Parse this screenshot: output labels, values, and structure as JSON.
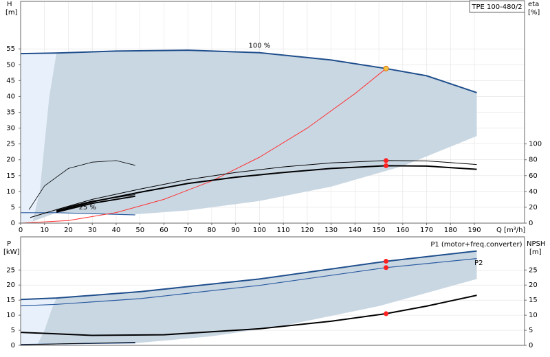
{
  "chart_data": [
    {
      "type": "line",
      "title": "TPE 100-480/2",
      "xlabel": "Q [m³/h]",
      "ylabel": "H",
      "yunit": "[m]",
      "y2label": "eta",
      "y2unit": "[%]",
      "xlim": [
        0,
        211
      ],
      "ylim": [
        0,
        70
      ],
      "y2lim": [
        0,
        280
      ],
      "grid": true,
      "xticks": [
        0,
        10,
        20,
        30,
        40,
        50,
        60,
        70,
        80,
        90,
        100,
        110,
        120,
        130,
        140,
        150,
        160,
        170,
        180,
        190
      ],
      "yticks": [
        0,
        5,
        10,
        15,
        20,
        25,
        30,
        35,
        40,
        45,
        50,
        55
      ],
      "y2ticks": [
        0,
        20,
        40,
        60,
        80,
        100
      ],
      "series": [
        {
          "style": "area",
          "color": "#e8f1fb",
          "x": [
            0,
            0,
            15,
            12,
            10,
            8,
            5
          ],
          "values": [
            0,
            53.5,
            53.7,
            40,
            25,
            10,
            0.5
          ]
        },
        {
          "style": "area",
          "color": "#c9d7e3",
          "x": [
            15,
            40,
            70,
            100,
            130,
            153,
            170,
            191,
            191,
            160,
            130,
            100,
            70,
            48,
            15,
            5,
            8,
            10,
            12
          ],
          "values": [
            53.7,
            54.3,
            54.6,
            53.8,
            51.5,
            48.8,
            46.5,
            41.2,
            27.5,
            18,
            11.5,
            7,
            4,
            2.8,
            3.3,
            0.5,
            10,
            25,
            40
          ]
        },
        {
          "style": "line",
          "color": "#1f4e8c",
          "width": 2,
          "x": [
            0,
            15,
            40,
            70,
            100,
            130,
            153,
            170,
            191
          ],
          "values": [
            53.5,
            53.7,
            54.3,
            54.6,
            53.8,
            51.5,
            48.8,
            46.5,
            41.2
          ]
        },
        {
          "style": "line",
          "color": "#2a5aa0",
          "width": 1.2,
          "x": [
            0,
            15,
            48
          ],
          "values": [
            3.3,
            3.3,
            2.6
          ]
        },
        {
          "style": "line",
          "color": "#ff3030",
          "width": 1,
          "x": [
            0,
            20,
            40,
            60,
            80,
            100,
            120,
            140,
            153
          ],
          "values": [
            0,
            0.83,
            3.34,
            7.5,
            13.3,
            20.8,
            30,
            40.9,
            48.8
          ]
        },
        {
          "style": "line",
          "color": "#000000",
          "width": 0.8,
          "axis": "y2",
          "x": [
            3.5,
            10,
            20,
            30,
            40,
            48
          ],
          "values": [
            17,
            47,
            69,
            77,
            79,
            73
          ]
        },
        {
          "style": "line",
          "color": "#000000",
          "width": 1,
          "axis": "y2",
          "x": [
            4,
            15,
            30,
            48
          ],
          "values": [
            7,
            17,
            28,
            36
          ]
        },
        {
          "style": "line",
          "color": "#000000",
          "width": 2,
          "axis": "y2",
          "x": [
            15,
            30,
            48
          ],
          "values": [
            14,
            25,
            34
          ]
        },
        {
          "style": "line",
          "color": "#000000",
          "width": 1,
          "axis": "y2",
          "x": [
            15,
            30,
            50,
            70,
            90,
            110,
            130,
            153,
            170,
            191
          ],
          "values": [
            17,
            30,
            43,
            55,
            64,
            71,
            76,
            79,
            78.5,
            74
          ]
        },
        {
          "style": "line",
          "color": "#000000",
          "width": 2,
          "axis": "y2",
          "x": [
            15,
            30,
            50,
            70,
            90,
            110,
            130,
            153,
            170,
            191
          ],
          "values": [
            15.5,
            27,
            39,
            50,
            58,
            64,
            69,
            72.5,
            72,
            68
          ]
        },
        {
          "style": "points",
          "color": "#ff2020",
          "axis": "y2",
          "x": [
            153,
            153
          ],
          "values": [
            79,
            72.5
          ]
        },
        {
          "style": "points",
          "color": "#f5c542",
          "x": [
            153
          ],
          "values": [
            48.8
          ]
        }
      ],
      "annotations": [
        {
          "text": "100 %",
          "x": 100,
          "y": 56,
          "anchor": "middle",
          "color": "#000000"
        },
        {
          "text": "25 %",
          "x": 28,
          "y": 5,
          "anchor": "middle",
          "color": "#000000"
        }
      ]
    },
    {
      "type": "line",
      "ylabel": "P",
      "yunit": "[kW]",
      "y2label": "NPSH",
      "y2unit": "[m]",
      "xlim": [
        0,
        211
      ],
      "ylim": [
        0,
        36
      ],
      "y2lim": [
        0,
        36
      ],
      "grid": true,
      "yticks": [
        0,
        5,
        10,
        15,
        20,
        25
      ],
      "y2ticks": [
        0,
        5,
        10,
        15,
        20,
        25
      ],
      "series": [
        {
          "style": "area",
          "color": "#e8f1fb",
          "x": [
            0,
            0,
            15,
            13,
            10,
            7
          ],
          "values": [
            0,
            15.2,
            15.7,
            12,
            5,
            0.3
          ]
        },
        {
          "style": "area",
          "color": "#c9d7e3",
          "x": [
            15,
            50,
            100,
            153,
            191,
            191,
            150,
            110,
            80,
            48,
            7,
            10,
            13
          ],
          "values": [
            15.7,
            17.8,
            22,
            27.9,
            31.3,
            22,
            13,
            6.5,
            3,
            0.7,
            0.3,
            5,
            12
          ]
        },
        {
          "style": "line",
          "color": "#1f4e8c",
          "width": 2,
          "x": [
            0,
            15,
            50,
            100,
            153,
            191
          ],
          "values": [
            15.2,
            15.7,
            17.8,
            22,
            27.9,
            31.3
          ]
        },
        {
          "style": "line",
          "color": "#2a5aa0",
          "width": 1.2,
          "x": [
            0,
            15,
            50,
            100,
            153,
            191
          ],
          "values": [
            13.1,
            13.6,
            15.5,
            19.9,
            25.8,
            28.8
          ]
        },
        {
          "style": "line",
          "color": "#2a5aa0",
          "width": 1.2,
          "x": [
            0,
            48
          ],
          "values": [
            0.3,
            0.8
          ]
        },
        {
          "style": "line",
          "color": "#000000",
          "width": 1,
          "axis": "y2",
          "x": [
            0,
            48
          ],
          "values": [
            0.2,
            1
          ]
        },
        {
          "style": "line",
          "color": "#000000",
          "width": 2,
          "axis": "y2",
          "x": [
            0,
            15,
            30,
            60,
            100,
            130,
            153,
            170,
            191
          ],
          "values": [
            4.3,
            3.8,
            3.3,
            3.5,
            5.5,
            8,
            10.5,
            13,
            16.6
          ]
        },
        {
          "style": "points",
          "color": "#ff2020",
          "x": [
            153,
            153
          ],
          "values": [
            27.9,
            25.8
          ]
        },
        {
          "style": "points",
          "color": "#ff2020",
          "axis": "y2",
          "x": [
            153
          ],
          "values": [
            10.5
          ]
        }
      ],
      "annotations": [
        {
          "text": "P1 (motor+freq.converter)",
          "x": 210,
          "y": 33.5,
          "anchor": "end",
          "color": "#1f4e8c"
        },
        {
          "text": "P2",
          "x": 190,
          "y": 27.3,
          "anchor": "start",
          "color": "#1f4e8c"
        }
      ]
    }
  ]
}
